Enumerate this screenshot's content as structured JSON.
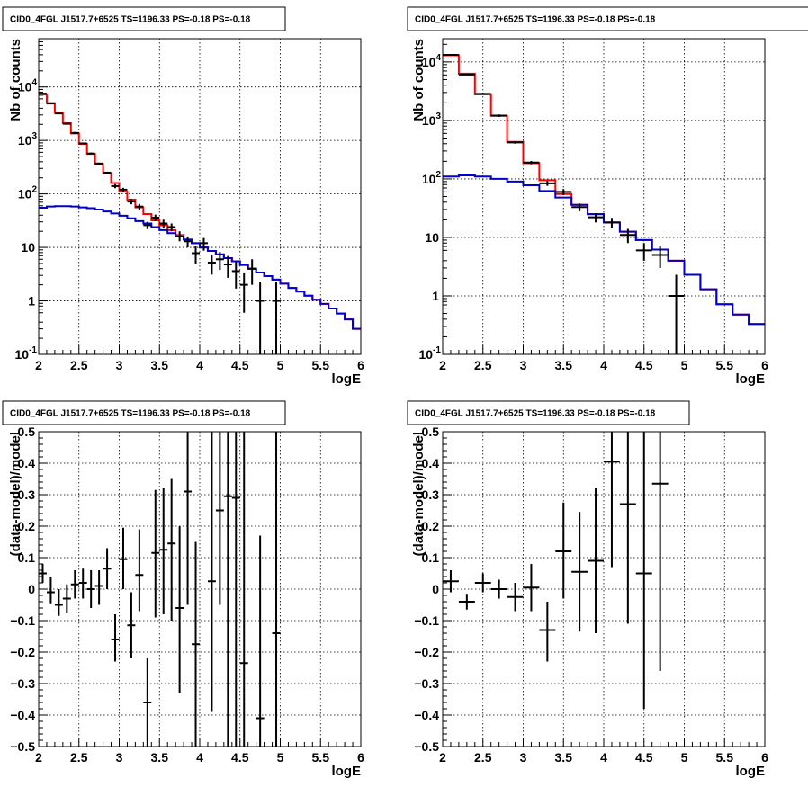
{
  "chart_data": [
    {
      "type": "line",
      "panel": "top-left",
      "title": "CID0_4FGL J1517.7+6525 TS=1196.33 PS=-0.18 PS=-0.18",
      "xlabel": "logE",
      "ylabel": "Nb of counts",
      "xlim": [
        2,
        6
      ],
      "ylim": [
        0.1,
        80000
      ],
      "ylog": true,
      "grid": true,
      "xticks": [
        "2",
        "2.5",
        "3",
        "3.5",
        "4",
        "4.5",
        "5",
        "5.5",
        "6"
      ],
      "yticks": [
        {
          "v": 0.1,
          "label": "10",
          "exp": "-1"
        },
        {
          "v": 1,
          "label": "1",
          "exp": ""
        },
        {
          "v": 10,
          "label": "10",
          "exp": ""
        },
        {
          "v": 100,
          "label": "10",
          "exp": "2"
        },
        {
          "v": 1000,
          "label": "10",
          "exp": "3"
        },
        {
          "v": 10000,
          "label": "10",
          "exp": "4"
        }
      ],
      "bin_width": 0.1,
      "hist_series": [
        {
          "color": "#ff0000",
          "x": [
            2.0,
            2.1,
            2.2,
            2.3,
            2.4,
            2.5,
            2.6,
            2.7,
            2.8,
            2.9,
            3.0,
            3.1,
            3.2,
            3.3,
            3.4,
            3.5,
            3.6,
            3.7,
            3.8,
            3.9,
            4.0,
            4.1,
            4.2,
            4.3,
            4.4,
            4.5,
            4.6,
            4.7,
            4.8,
            4.9,
            5.0,
            5.1,
            5.2,
            5.3,
            5.4,
            5.5,
            5.6,
            5.7,
            5.8,
            5.9
          ],
          "y": [
            7200,
            5000,
            3300,
            2100,
            1350,
            860,
            560,
            360,
            240,
            160,
            110,
            78,
            56,
            42,
            32,
            26,
            21,
            17,
            14,
            12,
            10,
            8.6,
            7.4,
            6.3,
            5.5,
            4.7,
            4.0,
            3.4,
            2.9,
            2.5,
            2.1,
            1.75,
            1.5,
            1.25,
            1.05,
            0.88,
            0.72,
            0.58,
            0.45,
            0.3
          ]
        },
        {
          "color": "#0000cc",
          "x": [
            2.0,
            2.1,
            2.2,
            2.3,
            2.4,
            2.5,
            2.6,
            2.7,
            2.8,
            2.9,
            3.0,
            3.1,
            3.2,
            3.3,
            3.4,
            3.5,
            3.6,
            3.7,
            3.8,
            3.9,
            4.0,
            4.1,
            4.2,
            4.3,
            4.4,
            4.5,
            4.6,
            4.7,
            4.8,
            4.9,
            5.0,
            5.1,
            5.2,
            5.3,
            5.4,
            5.5,
            5.6,
            5.7,
            5.8,
            5.9
          ],
          "y": [
            55,
            58,
            59,
            59,
            58,
            56,
            54,
            51,
            47,
            43,
            39,
            35,
            31,
            28,
            24,
            21,
            18.5,
            16,
            14,
            12,
            10,
            8.6,
            7.4,
            6.3,
            5.5,
            4.7,
            4.0,
            3.4,
            2.9,
            2.5,
            2.1,
            1.75,
            1.5,
            1.25,
            1.05,
            0.88,
            0.72,
            0.58,
            0.45,
            0.3
          ]
        }
      ],
      "points": {
        "color": "#000000",
        "x": [
          2.05,
          2.15,
          2.25,
          2.35,
          2.45,
          2.55,
          2.65,
          2.75,
          2.85,
          2.95,
          3.05,
          3.15,
          3.25,
          3.35,
          3.45,
          3.55,
          3.65,
          3.75,
          3.85,
          3.95,
          4.05,
          4.15,
          4.25,
          4.35,
          4.45,
          4.55,
          4.65,
          4.75,
          4.95
        ],
        "y": [
          7500,
          4900,
          3200,
          2050,
          1380,
          880,
          570,
          370,
          250,
          140,
          120,
          72,
          58,
          26,
          36,
          28,
          24,
          16,
          13,
          7.8,
          12,
          5.2,
          6.0,
          4.8,
          3.6,
          2.0,
          4.0,
          1.0,
          1.0
        ],
        "lo": [
          7300,
          4780,
          3100,
          1970,
          1320,
          850,
          550,
          355,
          240,
          128,
          110,
          64,
          51,
          22,
          31,
          23,
          20,
          13,
          10,
          5,
          8.7,
          3.1,
          3.8,
          2.7,
          1.7,
          0.6,
          2.0,
          0.1,
          0.1
        ],
        "hi": [
          7700,
          5020,
          3300,
          2130,
          1440,
          910,
          590,
          385,
          260,
          152,
          130,
          80,
          65,
          30,
          41,
          33,
          28,
          20,
          16,
          10.5,
          15,
          7.3,
          8.2,
          6.9,
          5.5,
          3.4,
          6.0,
          2.3,
          2.3
        ]
      }
    },
    {
      "type": "line",
      "panel": "top-right",
      "title": "CID0_4FGL J1517.7+6525 TS=1196.33 PS=-0.18 PS=-0.18",
      "xlabel": "logE",
      "ylabel": "Nb of counts",
      "xlim": [
        2,
        6
      ],
      "ylim": [
        0.1,
        25000
      ],
      "ylog": true,
      "grid": true,
      "xticks": [
        "2",
        "2.5",
        "3",
        "3.5",
        "4",
        "4.5",
        "5",
        "5.5",
        "6"
      ],
      "yticks": [
        {
          "v": 0.1,
          "label": "10",
          "exp": "-1"
        },
        {
          "v": 1,
          "label": "1",
          "exp": ""
        },
        {
          "v": 10,
          "label": "10",
          "exp": ""
        },
        {
          "v": 100,
          "label": "10",
          "exp": "2"
        },
        {
          "v": 1000,
          "label": "10",
          "exp": "3"
        },
        {
          "v": 10000,
          "label": "10",
          "exp": "4"
        }
      ],
      "bin_width": 0.2,
      "hist_series": [
        {
          "color": "#ff0000",
          "x": [
            2.0,
            2.2,
            2.4,
            2.6,
            2.8,
            3.0,
            3.2,
            3.4,
            3.6,
            3.8,
            4.0,
            4.2,
            4.4,
            4.6,
            4.8,
            5.0,
            5.2,
            5.4,
            5.6,
            5.8
          ],
          "y": [
            13000,
            6300,
            2800,
            1200,
            430,
            185,
            95,
            55,
            36,
            25,
            18,
            12.5,
            9,
            6.2,
            4,
            2.3,
            1.3,
            0.72,
            0.48,
            0.33
          ]
        },
        {
          "color": "#0000cc",
          "x": [
            2.0,
            2.2,
            2.4,
            2.6,
            2.8,
            3.0,
            3.2,
            3.4,
            3.6,
            3.8,
            4.0,
            4.2,
            4.4,
            4.6,
            4.8,
            5.0,
            5.2,
            5.4,
            5.6,
            5.8
          ],
          "y": [
            110,
            115,
            110,
            100,
            90,
            78,
            62,
            48,
            36,
            25,
            18,
            12.5,
            9,
            6.2,
            4,
            2.3,
            1.3,
            0.72,
            0.48,
            0.33
          ]
        }
      ],
      "points": {
        "color": "#000000",
        "x": [
          2.1,
          2.3,
          2.5,
          2.7,
          2.9,
          3.1,
          3.3,
          3.5,
          3.7,
          3.9,
          4.1,
          4.3,
          4.5,
          4.7,
          4.9
        ],
        "y": [
          13200,
          6100,
          2850,
          1210,
          420,
          190,
          84,
          60,
          33,
          22,
          18,
          11,
          6,
          5,
          1
        ],
        "lo": [
          13000,
          5950,
          2750,
          1150,
          400,
          178,
          76,
          53,
          28,
          18,
          14.5,
          8,
          4,
          3,
          0.1
        ],
        "hi": [
          13400,
          6250,
          2950,
          1270,
          440,
          202,
          92,
          67,
          38,
          26,
          21.5,
          14,
          8,
          7,
          2.3
        ]
      }
    },
    {
      "type": "scatter",
      "panel": "bottom-left",
      "title": "CID0_4FGL J1517.7+6525 TS=1196.33 PS=-0.18 PS=-0.18",
      "xlabel": "logE",
      "ylabel": "(data-model)/model",
      "xlim": [
        2,
        6
      ],
      "ylim": [
        -0.5,
        0.5
      ],
      "ylog": false,
      "grid": true,
      "xticks": [
        "2",
        "2.5",
        "3",
        "3.5",
        "4",
        "4.5",
        "5",
        "5.5",
        "6"
      ],
      "yticks": [
        {
          "v": -0.5,
          "label": "−0.5",
          "exp": ""
        },
        {
          "v": -0.4,
          "label": "−0.4",
          "exp": ""
        },
        {
          "v": -0.3,
          "label": "−0.3",
          "exp": ""
        },
        {
          "v": -0.2,
          "label": "−0.2",
          "exp": ""
        },
        {
          "v": -0.1,
          "label": "−0.1",
          "exp": ""
        },
        {
          "v": 0,
          "label": "0",
          "exp": ""
        },
        {
          "v": 0.1,
          "label": "0.1",
          "exp": ""
        },
        {
          "v": 0.2,
          "label": "0.2",
          "exp": ""
        },
        {
          "v": 0.3,
          "label": "0.3",
          "exp": ""
        },
        {
          "v": 0.4,
          "label": "0.4",
          "exp": ""
        },
        {
          "v": 0.5,
          "label": "0.5",
          "exp": ""
        }
      ],
      "bin_width": 0.1,
      "points": {
        "color": "#000000",
        "x": [
          2.05,
          2.15,
          2.25,
          2.35,
          2.45,
          2.55,
          2.65,
          2.75,
          2.85,
          2.95,
          3.05,
          3.15,
          3.25,
          3.35,
          3.45,
          3.55,
          3.65,
          3.75,
          3.85,
          3.95,
          4.15,
          4.25,
          4.35,
          4.45,
          4.55,
          4.75,
          4.95
        ],
        "y": [
          0.05,
          -0.01,
          -0.05,
          -0.03,
          0.015,
          0.02,
          0,
          0.01,
          0.065,
          -0.16,
          0.095,
          -0.115,
          0.045,
          -0.36,
          0.115,
          0.125,
          0.145,
          -0.06,
          0.31,
          -0.175,
          0.025,
          0.25,
          0.295,
          0.29,
          -0.235,
          -0.41,
          -0.14
        ],
        "lo": [
          0.02,
          -0.045,
          -0.085,
          -0.075,
          -0.03,
          -0.03,
          -0.06,
          -0.05,
          0,
          -0.23,
          0,
          -0.22,
          -0.07,
          -0.5,
          -0.09,
          -0.08,
          -0.1,
          -0.33,
          -0.05,
          -0.5,
          -0.39,
          -0.05,
          -0.5,
          -0.5,
          -0.5,
          -0.5,
          -0.5
        ],
        "hi": [
          0.08,
          0.04,
          0,
          0.015,
          0.06,
          0.065,
          0.06,
          0.06,
          0.13,
          -0.08,
          0.195,
          -0.01,
          0.19,
          -0.22,
          0.315,
          0.32,
          0.35,
          0.2,
          0.5,
          0.15,
          0.5,
          0.5,
          0.5,
          0.5,
          0.5,
          0.17,
          0.5
        ]
      }
    },
    {
      "type": "scatter",
      "panel": "bottom-right",
      "title": "CID0_4FGL J1517.7+6525 TS=1196.33 PS=-0.18 PS=-0.18",
      "xlabel": "logE",
      "ylabel": "(data-model)/model",
      "xlim": [
        2,
        6
      ],
      "ylim": [
        -0.5,
        0.5
      ],
      "ylog": false,
      "grid": true,
      "xticks": [
        "2",
        "2.5",
        "3",
        "3.5",
        "4",
        "4.5",
        "5",
        "5.5",
        "6"
      ],
      "yticks": [
        {
          "v": -0.5,
          "label": "−0.5",
          "exp": ""
        },
        {
          "v": -0.4,
          "label": "−0.4",
          "exp": ""
        },
        {
          "v": -0.3,
          "label": "−0.3",
          "exp": ""
        },
        {
          "v": -0.2,
          "label": "−0.2",
          "exp": ""
        },
        {
          "v": -0.1,
          "label": "−0.1",
          "exp": ""
        },
        {
          "v": 0,
          "label": "0",
          "exp": ""
        },
        {
          "v": 0.1,
          "label": "0.1",
          "exp": ""
        },
        {
          "v": 0.2,
          "label": "0.2",
          "exp": ""
        },
        {
          "v": 0.3,
          "label": "0.3",
          "exp": ""
        },
        {
          "v": 0.4,
          "label": "0.4",
          "exp": ""
        },
        {
          "v": 0.5,
          "label": "0.5",
          "exp": ""
        }
      ],
      "bin_width": 0.2,
      "points": {
        "color": "#000000",
        "x": [
          2.1,
          2.3,
          2.5,
          2.7,
          2.9,
          3.1,
          3.3,
          3.5,
          3.7,
          3.9,
          4.1,
          4.3,
          4.5,
          4.7
        ],
        "y": [
          0.025,
          -0.04,
          0.02,
          0,
          -0.025,
          0.005,
          -0.13,
          0.12,
          0.055,
          0.09,
          0.405,
          0.27,
          0.05,
          0.335
        ],
        "lo": [
          -0.01,
          -0.065,
          -0.01,
          -0.03,
          -0.07,
          -0.07,
          -0.23,
          -0.03,
          -0.135,
          -0.14,
          0.07,
          -0.11,
          -0.38,
          -0.26
        ],
        "hi": [
          0.06,
          -0.015,
          0.05,
          0.03,
          0.02,
          0.08,
          -0.04,
          0.275,
          0.245,
          0.32,
          0.5,
          0.5,
          0.5,
          0.5
        ]
      }
    }
  ]
}
